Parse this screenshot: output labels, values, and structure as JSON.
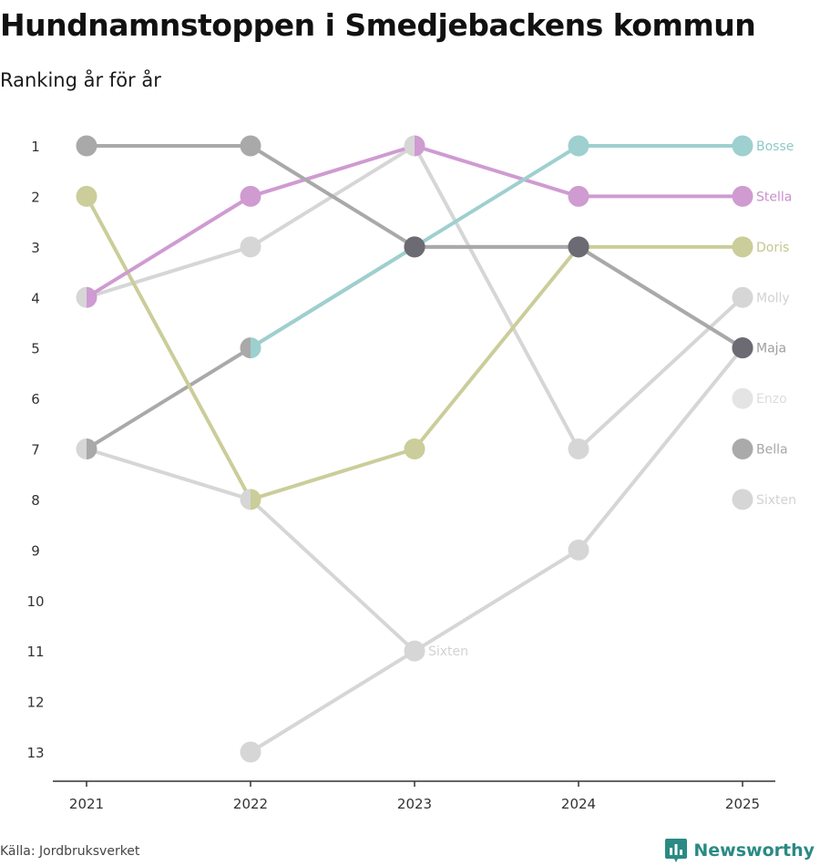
{
  "title": "Hundnamnstoppen i Smedjebackens kommun",
  "subtitle": "Ranking år för år",
  "source": "Källa: Jordbruksverket",
  "brand": "Newsworthy",
  "colors": {
    "axis": "#333333",
    "brand": "#2a8a84"
  },
  "chart_data": {
    "type": "line",
    "chart_kind": "bump",
    "x": [
      2021,
      2022,
      2023,
      2024,
      2025
    ],
    "y_ticks": [
      1,
      2,
      3,
      4,
      5,
      6,
      7,
      8,
      9,
      10,
      11,
      12,
      13
    ],
    "ylim": [
      1,
      13
    ],
    "y_inverted": true,
    "series": [
      {
        "name": "Molly",
        "color": "#d6d6d6",
        "label_color": "#d6d6d6",
        "values": [
          4,
          3,
          1,
          7,
          4
        ]
      },
      {
        "name": "Sixten",
        "color": "#d6d6d6",
        "label_color": "#d6d6d6",
        "values": [
          7,
          8,
          11,
          9,
          5
        ]
      },
      {
        "name": "Sixten",
        "color": "#d6d6d6",
        "label_color": "#d6d6d6",
        "values": [
          null,
          13,
          11,
          null,
          null
        ]
      },
      {
        "name": "Sixten",
        "color": "#d6d6d6",
        "label_color": "#d6d6d6",
        "values": [
          null,
          null,
          null,
          null,
          8
        ]
      },
      {
        "name": "Enzo",
        "color": "#e4e4e4",
        "label_color": "#dcdcdc",
        "values": [
          null,
          null,
          null,
          null,
          6
        ]
      },
      {
        "name": "Bella",
        "color": "#aaaaaa",
        "label_color": "#a6a6a6",
        "values": [
          null,
          null,
          null,
          null,
          7
        ]
      },
      {
        "name": "Maja",
        "color": "#a9a9a9",
        "point_color_highlight": "#6c6b73",
        "label_color": "#a3a3a3",
        "values": [
          7,
          5,
          3,
          3,
          5
        ]
      },
      {
        "name": "Doris",
        "color": "#cbcd9a",
        "label_color": "#c5c78f",
        "values": [
          2,
          8,
          7,
          3,
          3
        ]
      },
      {
        "name": "Stella",
        "color": "#cf9bd1",
        "label_color": "#c98fcc",
        "values": [
          4,
          2,
          1,
          2,
          2
        ]
      },
      {
        "name": "Bosse",
        "color": "#9dd0cf",
        "label_color": "#8ecac9",
        "values": [
          null,
          5,
          3,
          1,
          1
        ]
      },
      {
        "name": "Maja",
        "color": "#a9a9a9",
        "values": [
          1,
          1,
          3,
          3,
          5
        ]
      }
    ],
    "end_labels": [
      {
        "name": "Bosse",
        "rank": 1,
        "color": "#8ecac9"
      },
      {
        "name": "Stella",
        "rank": 2,
        "color": "#c98fcc"
      },
      {
        "name": "Doris",
        "rank": 3,
        "color": "#c5c78f"
      },
      {
        "name": "Molly",
        "rank": 4,
        "color": "#d2d2d2"
      },
      {
        "name": "Maja",
        "rank": 5,
        "color": "#9e9e9e"
      },
      {
        "name": "Enzo",
        "rank": 6,
        "color": "#dcdcdc"
      },
      {
        "name": "Bella",
        "rank": 7,
        "color": "#a6a6a6"
      },
      {
        "name": "Sixten",
        "rank": 8,
        "color": "#d2d2d2"
      }
    ],
    "inline_labels": [
      {
        "name": "Sixten",
        "x": 2023,
        "rank": 11,
        "color": "#d2d2d2"
      }
    ]
  }
}
